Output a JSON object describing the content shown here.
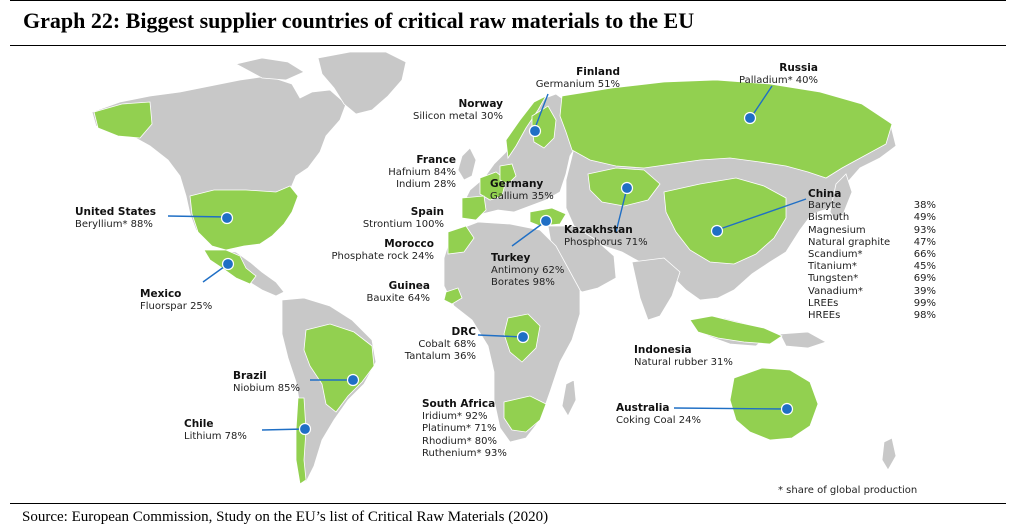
{
  "title": "Graph 22: Biggest supplier countries of critical raw materials to the EU",
  "colors": {
    "supplier": "#92d050",
    "land": "#c8c8c8",
    "border": "#ffffff",
    "marker": "#1f6fc5",
    "leader": "#1f6fc5"
  },
  "suppliers": [
    {
      "country": "Finland",
      "lines": [
        "Germanium 51%"
      ]
    },
    {
      "country": "Russia",
      "lines": [
        "Palladium* 40%"
      ]
    },
    {
      "country": "Norway",
      "lines": [
        "Silicon metal 30%"
      ]
    },
    {
      "country": "France",
      "lines": [
        "Hafnium 84%",
        "Indium 28%"
      ]
    },
    {
      "country": "Germany",
      "lines": [
        "Gallium 35%"
      ]
    },
    {
      "country": "Spain",
      "lines": [
        "Strontium 100%"
      ]
    },
    {
      "country": "Morocco",
      "lines": [
        "Phosphate rock 24%"
      ]
    },
    {
      "country": "United States",
      "lines": [
        "Beryllium* 88%"
      ]
    },
    {
      "country": "Kazakhstan",
      "lines": [
        "Phosphorus 71%"
      ]
    },
    {
      "country": "Turkey",
      "lines": [
        "Antimony 62%",
        "Borates 98%"
      ]
    },
    {
      "country": "Guinea",
      "lines": [
        "Bauxite 64%"
      ]
    },
    {
      "country": "Mexico",
      "lines": [
        "Fluorspar 25%"
      ]
    },
    {
      "country": "DRC",
      "lines": [
        "Cobalt 68%",
        "Tantalum 36%"
      ]
    },
    {
      "country": "Indonesia",
      "lines": [
        "Natural rubber 31%"
      ]
    },
    {
      "country": "Brazil",
      "lines": [
        "Niobium 85%"
      ]
    },
    {
      "country": "South Africa",
      "lines": [
        "Iridium* 92%",
        "Platinum* 71%",
        "Rhodium* 80%",
        "Ruthenium* 93%"
      ]
    },
    {
      "country": "Australia",
      "lines": [
        "Coking Coal 24%"
      ]
    },
    {
      "country": "Chile",
      "lines": [
        "Lithium 78%"
      ]
    }
  ],
  "china": {
    "country": "China",
    "rows": [
      {
        "material": "Baryte",
        "share": "38%"
      },
      {
        "material": "Bismuth",
        "share": "49%"
      },
      {
        "material": "Magnesium",
        "share": "93%"
      },
      {
        "material": "Natural graphite",
        "share": "47%"
      },
      {
        "material": "Scandium*",
        "share": "66%"
      },
      {
        "material": "Titanium*",
        "share": "45%"
      },
      {
        "material": "Tungsten*",
        "share": "69%"
      },
      {
        "material": "Vanadium*",
        "share": "39%"
      },
      {
        "material": "LREEs",
        "share": "99%"
      },
      {
        "material": "HREEs",
        "share": "98%"
      }
    ]
  },
  "footnote": "* share of global production",
  "source": "Source: European Commission, Study on the EU’s list of Critical Raw Materials (2020)"
}
